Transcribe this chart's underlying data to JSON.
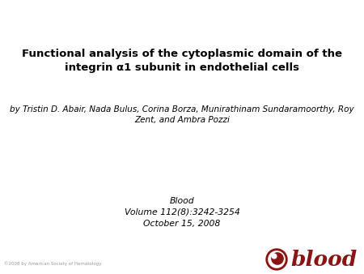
{
  "title_line1": "Functional analysis of the cytoplasmic domain of the",
  "title_line2": "integrin α1 subunit in endothelial cells",
  "authors_line1": "by Tristin D. Abair, Nada Bulus, Corina Borza, Munirathinam Sundaramoorthy, Roy",
  "authors_line2": "Zent, and Ambra Pozzi",
  "journal_line1": "Blood",
  "journal_line2": "Volume 112(8):3242-3254",
  "journal_line3": "October 15, 2008",
  "copyright": "©2008 by American Society of Hematology",
  "background_color": "#ffffff",
  "title_color": "#000000",
  "authors_color": "#000000",
  "journal_color": "#000000",
  "copyright_color": "#999999",
  "blood_color": "#8b1515"
}
